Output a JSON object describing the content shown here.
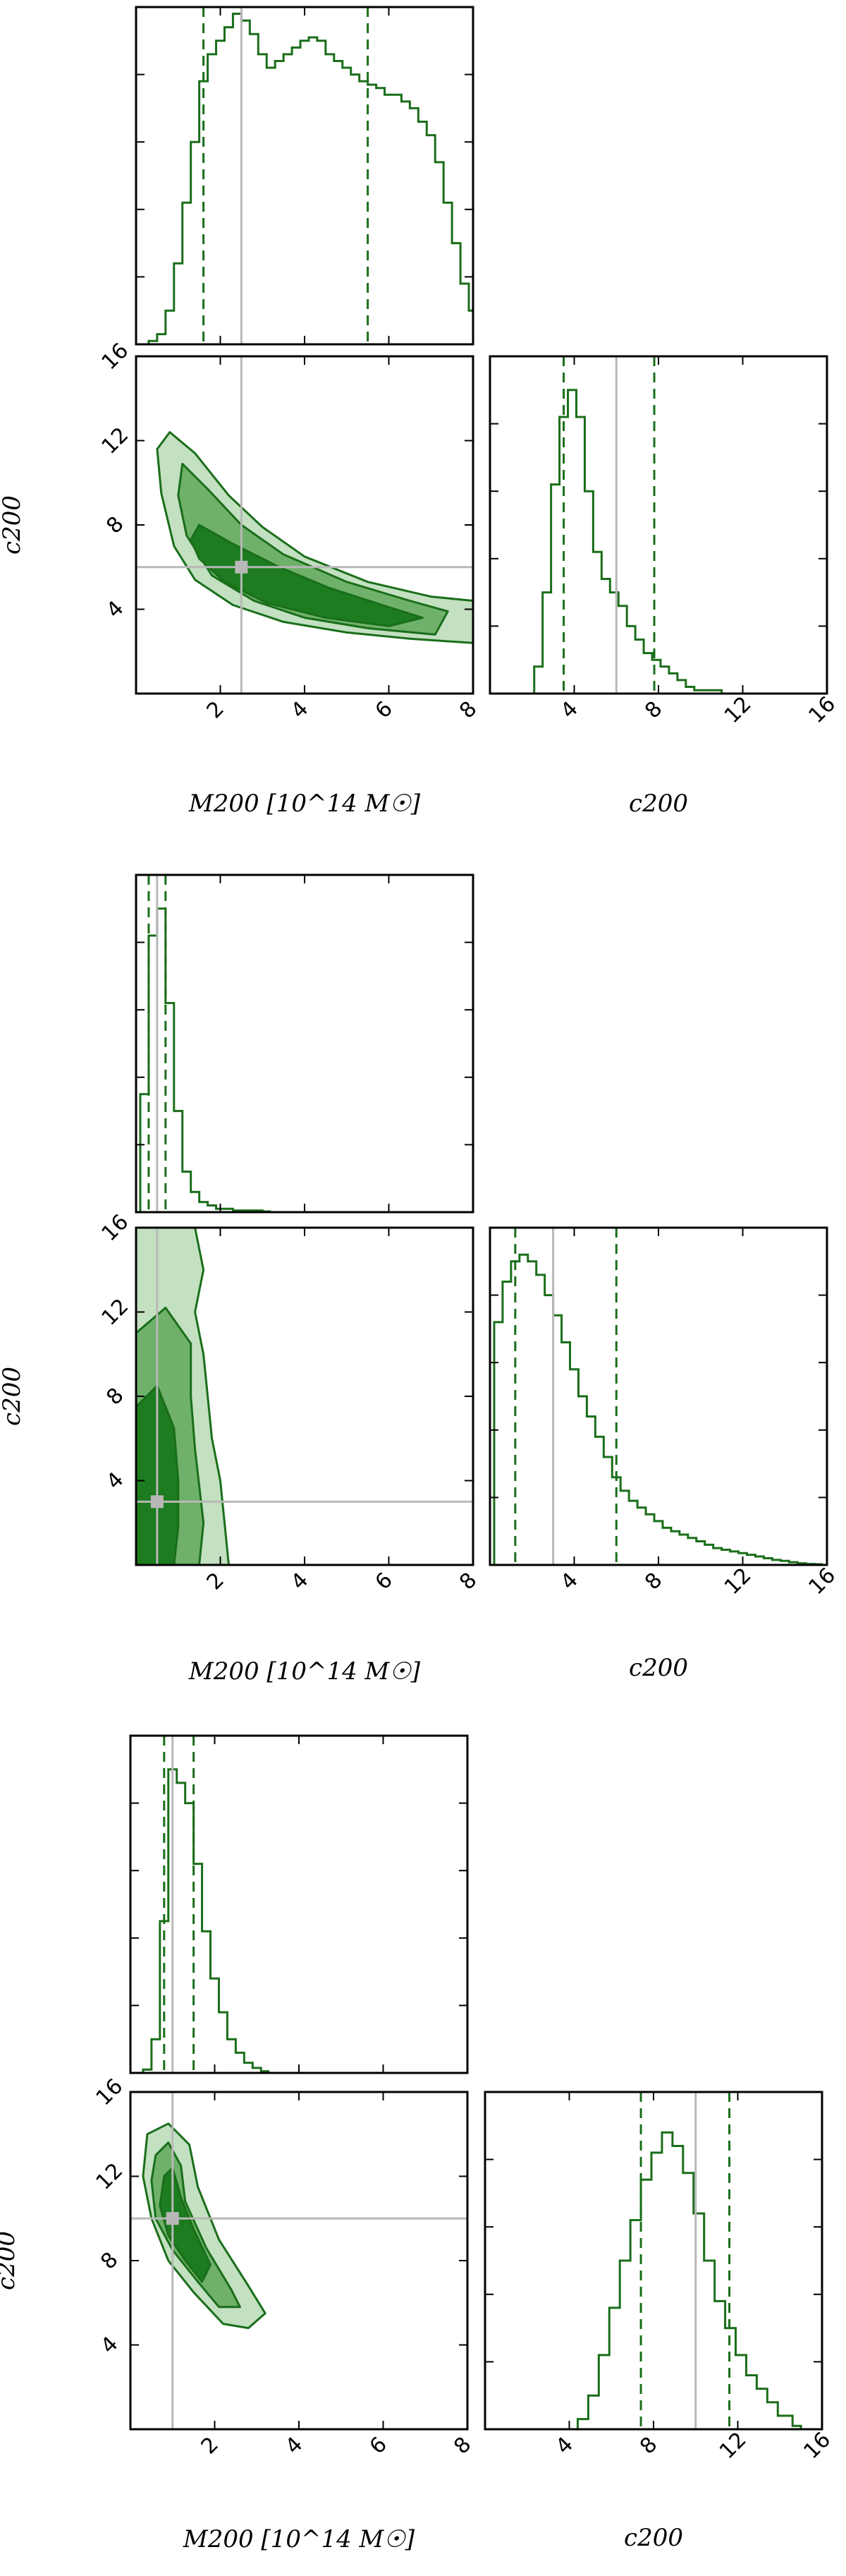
{
  "chart_data": [
    {
      "type": "corner",
      "xlabel": "M200 [10^14 M☉]",
      "ylabel": "c200",
      "diag_xlabel": "c200",
      "mass_range": [
        0,
        8
      ],
      "conc_range": [
        0,
        16
      ],
      "mass_ticks": [
        2,
        4,
        6,
        8
      ],
      "conc_ticks_y": [
        4,
        8,
        12,
        16
      ],
      "conc_ticks_x": [
        4,
        8,
        12,
        16
      ],
      "truth": {
        "mass": 2.5,
        "conc": 6
      },
      "mass_quantiles": [
        1.6,
        5.5
      ],
      "conc_quantiles": [
        3.5,
        7.8
      ],
      "mass_hist": [
        [
          0.3,
          0.01
        ],
        [
          0.5,
          0.03
        ],
        [
          0.7,
          0.1
        ],
        [
          0.9,
          0.24
        ],
        [
          1.1,
          0.42
        ],
        [
          1.3,
          0.6
        ],
        [
          1.5,
          0.78
        ],
        [
          1.7,
          0.86
        ],
        [
          1.9,
          0.9
        ],
        [
          2.1,
          0.94
        ],
        [
          2.3,
          0.98
        ],
        [
          2.5,
          0.96
        ],
        [
          2.7,
          0.92
        ],
        [
          2.9,
          0.86
        ],
        [
          3.1,
          0.82
        ],
        [
          3.3,
          0.84
        ],
        [
          3.5,
          0.86
        ],
        [
          3.7,
          0.88
        ],
        [
          3.9,
          0.9
        ],
        [
          4.1,
          0.91
        ],
        [
          4.3,
          0.9
        ],
        [
          4.5,
          0.86
        ],
        [
          4.7,
          0.84
        ],
        [
          4.9,
          0.82
        ],
        [
          5.1,
          0.8
        ],
        [
          5.3,
          0.78
        ],
        [
          5.5,
          0.77
        ],
        [
          5.7,
          0.76
        ],
        [
          5.9,
          0.74
        ],
        [
          6.1,
          0.74
        ],
        [
          6.3,
          0.72
        ],
        [
          6.5,
          0.7
        ],
        [
          6.7,
          0.66
        ],
        [
          6.9,
          0.62
        ],
        [
          7.1,
          0.54
        ],
        [
          7.3,
          0.42
        ],
        [
          7.5,
          0.3
        ],
        [
          7.7,
          0.18
        ],
        [
          7.9,
          0.1
        ]
      ],
      "conc_hist": [
        [
          1.5,
          0.0
        ],
        [
          2.1,
          0.08
        ],
        [
          2.5,
          0.3
        ],
        [
          2.9,
          0.62
        ],
        [
          3.3,
          0.82
        ],
        [
          3.7,
          0.9
        ],
        [
          4.1,
          0.82
        ],
        [
          4.5,
          0.6
        ],
        [
          4.9,
          0.42
        ],
        [
          5.3,
          0.34
        ],
        [
          5.7,
          0.3
        ],
        [
          6.1,
          0.26
        ],
        [
          6.5,
          0.2
        ],
        [
          6.9,
          0.16
        ],
        [
          7.3,
          0.12
        ],
        [
          7.7,
          0.1
        ],
        [
          8.1,
          0.08
        ],
        [
          8.5,
          0.06
        ],
        [
          8.9,
          0.04
        ],
        [
          9.3,
          0.02
        ],
        [
          9.7,
          0.01
        ],
        [
          11.0,
          0.0
        ]
      ],
      "contours": [
        [
          [
            0.8,
            12.4
          ],
          [
            1.4,
            11.4
          ],
          [
            2.2,
            9.4
          ],
          [
            3.0,
            7.9
          ],
          [
            4.0,
            6.5
          ],
          [
            5.5,
            5.3
          ],
          [
            7.0,
            4.6
          ],
          [
            8.0,
            4.4
          ],
          [
            8.0,
            2.4
          ],
          [
            6.5,
            2.6
          ],
          [
            5.0,
            2.9
          ],
          [
            3.5,
            3.4
          ],
          [
            2.3,
            4.2
          ],
          [
            1.4,
            5.4
          ],
          [
            0.9,
            7.0
          ],
          [
            0.6,
            9.5
          ],
          [
            0.5,
            11.6
          ]
        ],
        [
          [
            1.1,
            10.9
          ],
          [
            1.7,
            9.7
          ],
          [
            2.5,
            8.0
          ],
          [
            3.5,
            6.6
          ],
          [
            5.0,
            5.3
          ],
          [
            6.5,
            4.4
          ],
          [
            7.4,
            3.9
          ],
          [
            7.1,
            2.8
          ],
          [
            5.5,
            3.1
          ],
          [
            4.0,
            3.6
          ],
          [
            2.8,
            4.4
          ],
          [
            1.8,
            5.6
          ],
          [
            1.2,
            7.5
          ],
          [
            1.0,
            9.4
          ]
        ],
        [
          [
            1.5,
            8.0
          ],
          [
            2.3,
            7.1
          ],
          [
            3.4,
            6.0
          ],
          [
            4.6,
            5.0
          ],
          [
            6.0,
            4.1
          ],
          [
            6.8,
            3.6
          ],
          [
            6.0,
            3.2
          ],
          [
            4.5,
            3.6
          ],
          [
            3.1,
            4.3
          ],
          [
            2.1,
            5.3
          ],
          [
            1.5,
            6.4
          ],
          [
            1.3,
            7.3
          ]
        ]
      ]
    },
    {
      "type": "corner",
      "xlabel": "M200 [10^14 M☉]",
      "ylabel": "c200",
      "diag_xlabel": "c200",
      "mass_range": [
        0,
        8
      ],
      "conc_range": [
        0,
        16
      ],
      "mass_ticks": [
        2,
        4,
        6,
        8
      ],
      "conc_ticks_y": [
        4,
        8,
        12,
        16
      ],
      "conc_ticks_x": [
        4,
        8,
        12,
        16
      ],
      "truth": {
        "mass": 0.5,
        "conc": 3
      },
      "mass_quantiles": [
        0.3,
        0.7
      ],
      "conc_quantiles": [
        1.2,
        6.0
      ],
      "mass_hist": [
        [
          0.1,
          0.35
        ],
        [
          0.3,
          0.82
        ],
        [
          0.5,
          0.9
        ],
        [
          0.7,
          0.62
        ],
        [
          0.9,
          0.3
        ],
        [
          1.1,
          0.12
        ],
        [
          1.3,
          0.06
        ],
        [
          1.5,
          0.03
        ],
        [
          1.7,
          0.02
        ],
        [
          1.9,
          0.01
        ],
        [
          2.3,
          0.005
        ],
        [
          3.0,
          0.002
        ]
      ],
      "conc_hist": [
        [
          0.2,
          0.72
        ],
        [
          0.6,
          0.84
        ],
        [
          1.0,
          0.9
        ],
        [
          1.4,
          0.92
        ],
        [
          1.8,
          0.9
        ],
        [
          2.2,
          0.86
        ],
        [
          2.6,
          0.8
        ],
        [
          3.0,
          0.74
        ],
        [
          3.4,
          0.66
        ],
        [
          3.8,
          0.58
        ],
        [
          4.2,
          0.5
        ],
        [
          4.6,
          0.44
        ],
        [
          5.0,
          0.38
        ],
        [
          5.4,
          0.32
        ],
        [
          5.8,
          0.26
        ],
        [
          6.2,
          0.22
        ],
        [
          6.6,
          0.19
        ],
        [
          7.0,
          0.17
        ],
        [
          7.4,
          0.15
        ],
        [
          7.8,
          0.13
        ],
        [
          8.2,
          0.11
        ],
        [
          8.6,
          0.1
        ],
        [
          9.0,
          0.09
        ],
        [
          9.4,
          0.08
        ],
        [
          9.8,
          0.07
        ],
        [
          10.2,
          0.06
        ],
        [
          10.6,
          0.05
        ],
        [
          11.0,
          0.045
        ],
        [
          11.4,
          0.04
        ],
        [
          11.8,
          0.035
        ],
        [
          12.2,
          0.03
        ],
        [
          12.6,
          0.025
        ],
        [
          13.0,
          0.02
        ],
        [
          13.4,
          0.015
        ],
        [
          13.8,
          0.012
        ],
        [
          14.2,
          0.008
        ],
        [
          14.6,
          0.005
        ],
        [
          15.0,
          0.003
        ],
        [
          15.4,
          0.002
        ]
      ],
      "contours": [
        [
          [
            0.0,
            16.0
          ],
          [
            1.4,
            16.0
          ],
          [
            1.6,
            14.0
          ],
          [
            1.4,
            12.0
          ],
          [
            1.6,
            10.0
          ],
          [
            1.7,
            8.0
          ],
          [
            1.8,
            6.0
          ],
          [
            2.0,
            4.0
          ],
          [
            2.1,
            2.0
          ],
          [
            2.2,
            0.0
          ],
          [
            0.0,
            0.0
          ]
        ],
        [
          [
            0.0,
            11.0
          ],
          [
            0.7,
            12.2
          ],
          [
            1.3,
            10.5
          ],
          [
            1.3,
            8.0
          ],
          [
            1.4,
            5.5
          ],
          [
            1.6,
            2.0
          ],
          [
            1.5,
            0.0
          ],
          [
            0.0,
            0.0
          ]
        ],
        [
          [
            0.0,
            7.5
          ],
          [
            0.5,
            8.5
          ],
          [
            0.9,
            6.5
          ],
          [
            1.0,
            4.0
          ],
          [
            1.0,
            1.8
          ],
          [
            0.9,
            0.0
          ],
          [
            0.0,
            0.0
          ]
        ]
      ]
    },
    {
      "type": "corner",
      "xlabel": "M200 [10^14 M☉]",
      "ylabel": "c200",
      "diag_xlabel": "c200",
      "mass_range": [
        0,
        8
      ],
      "conc_range": [
        0,
        16
      ],
      "mass_ticks": [
        2,
        4,
        6,
        8
      ],
      "conc_ticks_y": [
        4,
        8,
        12,
        16
      ],
      "conc_ticks_x": [
        4,
        8,
        12,
        16
      ],
      "truth": {
        "mass": 1.0,
        "conc": 10
      },
      "mass_quantiles": [
        0.8,
        1.5
      ],
      "conc_quantiles": [
        7.4,
        11.6
      ],
      "mass_hist": [
        [
          0.3,
          0.01
        ],
        [
          0.5,
          0.1
        ],
        [
          0.7,
          0.45
        ],
        [
          0.9,
          0.9
        ],
        [
          1.1,
          0.86
        ],
        [
          1.3,
          0.8
        ],
        [
          1.5,
          0.62
        ],
        [
          1.7,
          0.42
        ],
        [
          1.9,
          0.28
        ],
        [
          2.1,
          0.18
        ],
        [
          2.3,
          0.1
        ],
        [
          2.5,
          0.06
        ],
        [
          2.7,
          0.03
        ],
        [
          2.9,
          0.015
        ],
        [
          3.1,
          0.005
        ]
      ],
      "conc_hist": [
        [
          3.6,
          0.0
        ],
        [
          4.4,
          0.03
        ],
        [
          4.9,
          0.1
        ],
        [
          5.4,
          0.22
        ],
        [
          5.9,
          0.36
        ],
        [
          6.4,
          0.5
        ],
        [
          6.9,
          0.62
        ],
        [
          7.4,
          0.74
        ],
        [
          7.9,
          0.82
        ],
        [
          8.4,
          0.88
        ],
        [
          8.9,
          0.84
        ],
        [
          9.4,
          0.76
        ],
        [
          9.9,
          0.64
        ],
        [
          10.4,
          0.5
        ],
        [
          10.9,
          0.38
        ],
        [
          11.4,
          0.3
        ],
        [
          11.9,
          0.22
        ],
        [
          12.4,
          0.16
        ],
        [
          12.9,
          0.12
        ],
        [
          13.4,
          0.08
        ],
        [
          13.9,
          0.04
        ],
        [
          14.6,
          0.01
        ],
        [
          15.0,
          0.0
        ]
      ],
      "contours": [
        [
          [
            0.4,
            14.0
          ],
          [
            0.9,
            14.5
          ],
          [
            1.4,
            13.5
          ],
          [
            1.6,
            11.5
          ],
          [
            2.1,
            9.0
          ],
          [
            2.8,
            6.8
          ],
          [
            3.2,
            5.5
          ],
          [
            2.8,
            4.8
          ],
          [
            2.2,
            5.0
          ],
          [
            1.5,
            6.5
          ],
          [
            0.9,
            8.0
          ],
          [
            0.5,
            10.0
          ],
          [
            0.3,
            12.0
          ]
        ],
        [
          [
            0.6,
            13.0
          ],
          [
            0.9,
            13.6
          ],
          [
            1.2,
            12.5
          ],
          [
            1.3,
            10.8
          ],
          [
            1.8,
            8.6
          ],
          [
            2.4,
            6.6
          ],
          [
            2.6,
            5.8
          ],
          [
            2.1,
            5.8
          ],
          [
            1.6,
            7.0
          ],
          [
            1.0,
            8.5
          ],
          [
            0.6,
            10.0
          ],
          [
            0.5,
            11.8
          ]
        ],
        [
          [
            0.8,
            12.0
          ],
          [
            1.0,
            12.4
          ],
          [
            1.2,
            11.0
          ],
          [
            1.5,
            9.5
          ],
          [
            1.9,
            7.8
          ],
          [
            1.7,
            7.0
          ],
          [
            1.3,
            8.0
          ],
          [
            0.9,
            9.2
          ],
          [
            0.7,
            10.6
          ]
        ]
      ]
    }
  ],
  "colors": {
    "line": "#1a6e1a",
    "fill_outer": "#c3e0c1",
    "fill_mid": "#6fb16a",
    "fill_inner": "#1c7c1f",
    "truth": "#b8b8b8"
  }
}
